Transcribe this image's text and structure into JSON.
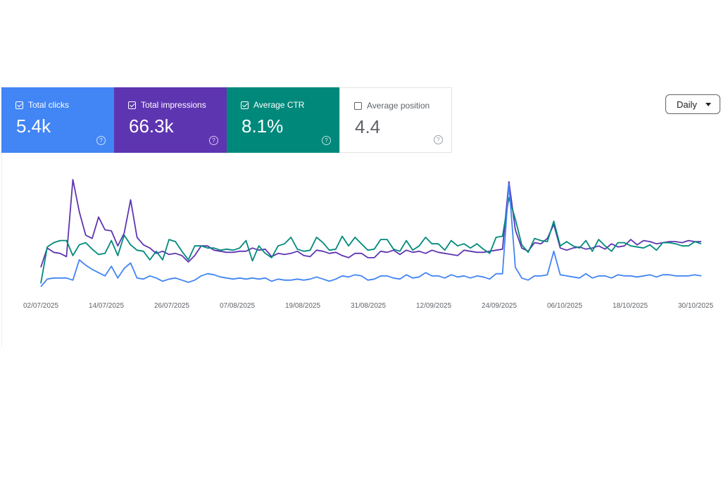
{
  "cards": [
    {
      "label": "Total clicks",
      "value": "5.4k",
      "checked": true,
      "color": "#4285f4"
    },
    {
      "label": "Total impressions",
      "value": "66.3k",
      "checked": true,
      "color": "#5e35b1"
    },
    {
      "label": "Average CTR",
      "value": "8.1%",
      "checked": true,
      "color": "#00897b"
    },
    {
      "label": "Average position",
      "value": "4.4",
      "checked": false,
      "color": "#ffffff"
    }
  ],
  "period_button": {
    "label": "Daily"
  },
  "help_glyph": "?",
  "chart_data": {
    "type": "line",
    "x_tick_labels": [
      "02/07/2025",
      "14/07/2025",
      "26/07/2025",
      "07/08/2025",
      "19/08/2025",
      "31/08/2025",
      "12/09/2025",
      "24/09/2025",
      "06/10/2025",
      "18/10/2025",
      "30/10/2025"
    ],
    "x_range": [
      "02/07/2025",
      "30/10/2025"
    ],
    "grid": false,
    "legend": "none",
    "series": [
      {
        "color": "#5e35b1",
        "values": [
          20,
          38,
          34,
          33,
          30,
          102,
          72,
          50,
          47,
          67,
          55,
          54,
          40,
          52,
          83,
          48,
          41,
          38,
          33,
          35,
          32,
          33,
          31,
          25,
          31,
          40,
          40,
          36,
          35,
          34,
          34,
          35,
          35,
          38,
          36,
          37,
          30,
          33,
          32,
          33,
          35,
          31,
          30,
          36,
          35,
          33,
          34,
          31,
          29,
          33,
          33,
          29,
          29,
          35,
          34,
          36,
          32,
          36,
          34,
          35,
          33,
          36,
          34,
          33,
          32,
          31,
          36,
          35,
          34,
          34,
          35,
          36,
          37,
          100,
          55,
          38,
          35,
          43,
          42,
          47,
          60,
          38,
          36,
          38,
          39,
          37,
          38,
          40,
          37,
          42,
          39,
          40,
          46,
          41,
          45,
          44,
          42,
          43,
          44,
          44,
          43,
          45,
          44,
          44
        ]
      },
      {
        "color": "#00897b",
        "values": [
          5,
          39,
          43,
          45,
          45,
          31,
          41,
          43,
          37,
          32,
          33,
          45,
          31,
          50,
          41,
          36,
          35,
          27,
          35,
          27,
          46,
          44,
          35,
          27,
          40,
          40,
          38,
          38,
          36,
          37,
          36,
          38,
          45,
          26,
          40,
          33,
          29,
          40,
          42,
          48,
          37,
          35,
          36,
          48,
          43,
          36,
          37,
          49,
          40,
          48,
          42,
          36,
          37,
          46,
          46,
          37,
          35,
          45,
          36,
          40,
          48,
          42,
          42,
          36,
          45,
          40,
          42,
          38,
          42,
          37,
          33,
          48,
          49,
          85,
          65,
          41,
          34,
          47,
          45,
          44,
          63,
          40,
          44,
          40,
          38,
          45,
          35,
          46,
          40,
          35,
          43,
          43,
          40,
          39,
          38,
          41,
          36,
          43,
          43,
          42,
          40,
          40,
          44,
          42
        ]
      },
      {
        "color": "#4285f4",
        "values": [
          2,
          9,
          10,
          10,
          10,
          8,
          27,
          22,
          18,
          15,
          12,
          21,
          10,
          19,
          24,
          10,
          9,
          12,
          10,
          7,
          9,
          10,
          8,
          6,
          8,
          12,
          14,
          13,
          11,
          10,
          9,
          10,
          9,
          10,
          9,
          10,
          7,
          9,
          8,
          8,
          9,
          8,
          9,
          11,
          9,
          7,
          9,
          12,
          11,
          13,
          12,
          8,
          9,
          12,
          12,
          10,
          9,
          13,
          10,
          11,
          15,
          12,
          12,
          10,
          13,
          11,
          12,
          10,
          12,
          11,
          9,
          14,
          14,
          98,
          20,
          10,
          8,
          12,
          12,
          13,
          35,
          13,
          12,
          11,
          10,
          14,
          10,
          12,
          12,
          10,
          13,
          12,
          12,
          11,
          12,
          13,
          11,
          13,
          13,
          12,
          12,
          12,
          13,
          12
        ]
      }
    ]
  }
}
